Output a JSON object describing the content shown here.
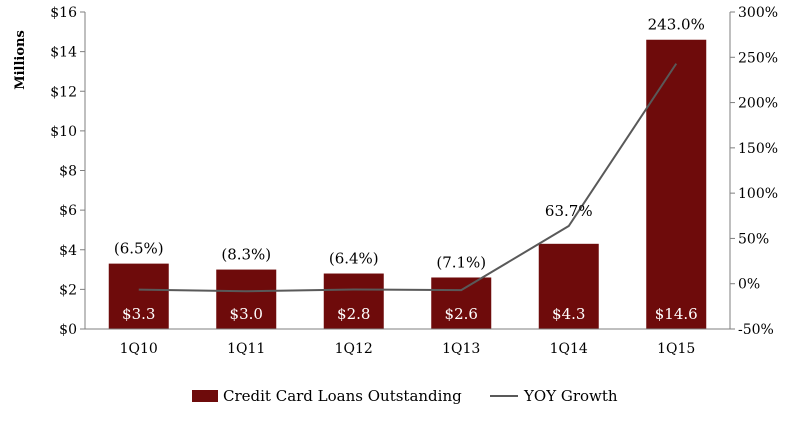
{
  "chart_data": {
    "type": "bar",
    "categories": [
      "1Q10",
      "1Q11",
      "1Q12",
      "1Q13",
      "1Q14",
      "1Q15"
    ],
    "series": [
      {
        "name": "Credit Card Loans Outstanding",
        "kind": "bar",
        "axis": "left",
        "color": "#6e0b0b",
        "values": [
          3.3,
          3.0,
          2.8,
          2.6,
          4.3,
          14.6
        ],
        "labels": [
          "$3.3",
          "$3.0",
          "$2.8",
          "$2.6",
          "$4.3",
          "$14.6"
        ]
      },
      {
        "name": "YOY Growth",
        "kind": "line",
        "axis": "right",
        "color": "#595959",
        "values": [
          -6.5,
          -8.3,
          -6.4,
          -7.1,
          63.7,
          243.0
        ],
        "labels": [
          "(6.5%)",
          "(8.3%)",
          "(6.4%)",
          "(7.1%)",
          "63.7%",
          "243.0%"
        ]
      }
    ],
    "ylabel": "Millions",
    "ylim": [
      0,
      16
    ],
    "y_ticks": [
      "$0",
      "$2",
      "$4",
      "$6",
      "$8",
      "$10",
      "$12",
      "$14",
      "$16"
    ],
    "y2lim": [
      -50,
      300
    ],
    "y2_ticks": [
      "-50%",
      "0%",
      "50%",
      "100%",
      "150%",
      "200%",
      "250%",
      "300%"
    ],
    "grid": false,
    "legend_position": "bottom"
  }
}
